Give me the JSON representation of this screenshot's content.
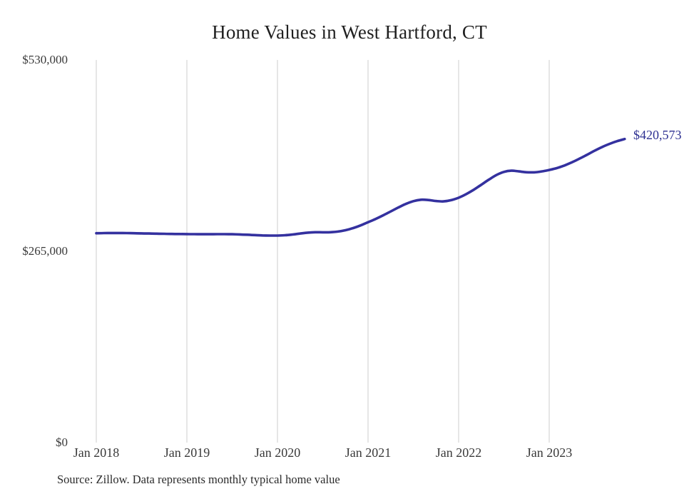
{
  "chart": {
    "footer": "Source: Zillow. Data represents monthly typical home value",
    "colors": {
      "line": "#34319f",
      "grid": "#cccccc",
      "title_text": "#1f1f1f",
      "tick_text": "#3a3a3a",
      "annotation_text": "#2e3192"
    }
  },
  "chart_data": {
    "type": "line",
    "title": "Home Values in West Hartford, CT",
    "xlabel": "",
    "ylabel": "",
    "x_start": "Jan 2018",
    "x_end": "Nov 2023",
    "x_interval": "monthly",
    "ylim": [
      0,
      530000
    ],
    "grid": "vertical-only",
    "x_ticks": [
      "Jan 2018",
      "Jan 2019",
      "Jan 2020",
      "Jan 2021",
      "Jan 2022",
      "Jan 2023"
    ],
    "y_ticks": [
      {
        "value": 530000,
        "label": "$530,000"
      },
      {
        "value": 265000,
        "label": "$265,000"
      },
      {
        "value": 0,
        "label": "$0"
      }
    ],
    "series": [
      {
        "name": "Monthly typical home value",
        "values": [
          290000,
          290200,
          290300,
          290300,
          290200,
          290000,
          289800,
          289600,
          289400,
          289200,
          289000,
          288900,
          288800,
          288700,
          288600,
          288600,
          288700,
          288700,
          288600,
          288300,
          287900,
          287400,
          287000,
          286800,
          286800,
          287200,
          288200,
          289600,
          290800,
          291400,
          291300,
          291400,
          292300,
          294200,
          297000,
          300800,
          305200,
          309800,
          314800,
          320200,
          325600,
          330600,
          334400,
          336400,
          336000,
          334600,
          334100,
          335800,
          339200,
          344200,
          350200,
          357200,
          364200,
          370600,
          375000,
          376600,
          375600,
          374500,
          374400,
          375600,
          377600,
          380200,
          383800,
          388200,
          393200,
          398600,
          404200,
          409400,
          413800,
          417600,
          420573
        ]
      }
    ],
    "annotation": {
      "text": "$420,573",
      "value": 420573,
      "position": "line-end"
    }
  }
}
